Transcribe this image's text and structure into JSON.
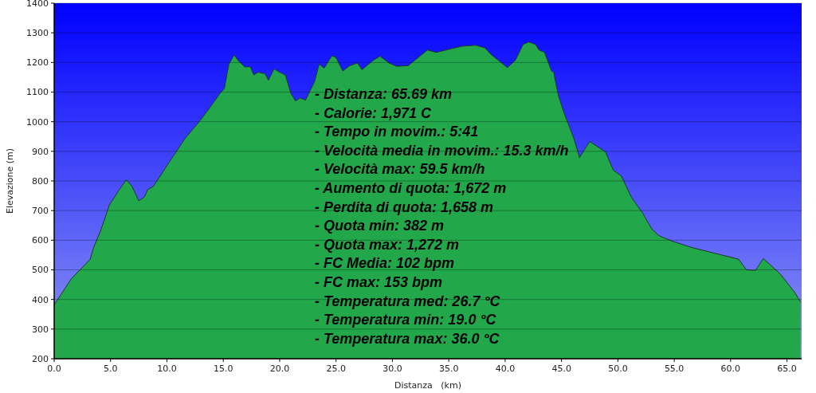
{
  "chart_data": {
    "type": "area",
    "xlabel": "Distanza   (km)",
    "ylabel": "Elevazione (m)",
    "x": [
      0,
      1.5,
      3.2,
      3.5,
      4.1,
      4.9,
      5.75,
      6.4,
      6.9,
      7.5,
      8.0,
      8.3,
      8.8,
      10.2,
      11.6,
      12.8,
      13.7,
      14.7,
      15.1,
      15.5,
      15.96,
      16.3,
      16.9,
      17.4,
      17.7,
      18.1,
      18.7,
      19.0,
      19.5,
      20.0,
      20.5,
      21.0,
      21.4,
      21.8,
      22.3,
      23.1,
      23.5,
      23.95,
      24.65,
      25.0,
      25.6,
      26.2,
      26.9,
      27.3,
      28.3,
      28.9,
      29.7,
      30.4,
      31.4,
      33.1,
      33.9,
      35.3,
      36.2,
      37.4,
      38.2,
      38.8,
      39.5,
      40.2,
      40.9,
      41.6,
      42.1,
      42.7,
      43.0,
      43.5,
      44.1,
      44.3,
      44.7,
      45.2,
      46.1,
      46.6,
      47.5,
      48.9,
      49.6,
      50.3,
      51.2,
      52.2,
      53.0,
      53.6,
      54.8,
      56.5,
      58.8,
      60.7,
      61.4,
      62.2,
      62.9,
      64.4,
      65.7,
      66.2
    ],
    "series": [
      {
        "color": "#22a84a",
        "values": [
          382,
          469,
          536,
          576,
          630,
          719,
          769,
          804,
          782,
          733,
          746,
          771,
          782,
          863,
          943,
          997,
          1042,
          1095,
          1113,
          1194,
          1225,
          1207,
          1185,
          1185,
          1158,
          1167,
          1162,
          1140,
          1178,
          1167,
          1158,
          1095,
          1070,
          1080,
          1073,
          1136,
          1194,
          1181,
          1223,
          1216,
          1171,
          1189,
          1198,
          1176,
          1207,
          1221,
          1198,
          1187,
          1189,
          1242,
          1234,
          1247,
          1255,
          1258,
          1249,
          1225,
          1204,
          1183,
          1207,
          1261,
          1269,
          1261,
          1242,
          1234,
          1172,
          1167,
          1091,
          1032,
          943,
          879,
          933,
          898,
          836,
          817,
          745,
          691,
          638,
          616,
          597,
          576,
          554,
          536,
          500,
          498,
          538,
          486,
          423,
          392
        ]
      }
    ],
    "xlim": [
      0,
      66.3
    ],
    "ylim": [
      200,
      1400
    ],
    "xticks": [
      {
        "value": 0,
        "label": "0.0"
      },
      {
        "value": 5,
        "label": "5.0"
      },
      {
        "value": 10,
        "label": "10.0"
      },
      {
        "value": 15,
        "label": "15.0"
      },
      {
        "value": 20,
        "label": "20.0"
      },
      {
        "value": 25,
        "label": "25.0"
      },
      {
        "value": 30,
        "label": "30.0"
      },
      {
        "value": 35,
        "label": "35.0"
      },
      {
        "value": 40,
        "label": "40.0"
      },
      {
        "value": 45,
        "label": "45.0"
      },
      {
        "value": 50,
        "label": "50.0"
      },
      {
        "value": 55,
        "label": "55.0"
      },
      {
        "value": 60,
        "label": "60.0"
      },
      {
        "value": 65,
        "label": "65.0"
      }
    ],
    "yticks": [
      200,
      300,
      400,
      500,
      600,
      700,
      800,
      900,
      1000,
      1100,
      1200,
      1300,
      1400
    ],
    "grid": "y",
    "annotations": [
      "- Distanza: 65.69 km",
      "- Calorie: 1,971 C",
      "- Tempo in movim.: 5:41",
      "- Velocità media in movim.: 15.3 km/h",
      "- Velocità max: 59.5 km/h",
      "- Aumento di quota: 1,672 m",
      "- Perdita di quota: 1,658 m",
      "- Quota min: 382 m",
      "- Quota max: 1,272 m",
      "- FC Media: 102 bpm",
      "- FC max: 153 bpm",
      "- Temperatura med: 26.7 °C",
      "- Temperatura min: 19.0 °C",
      "- Temperatura max: 36.0 °C"
    ]
  }
}
